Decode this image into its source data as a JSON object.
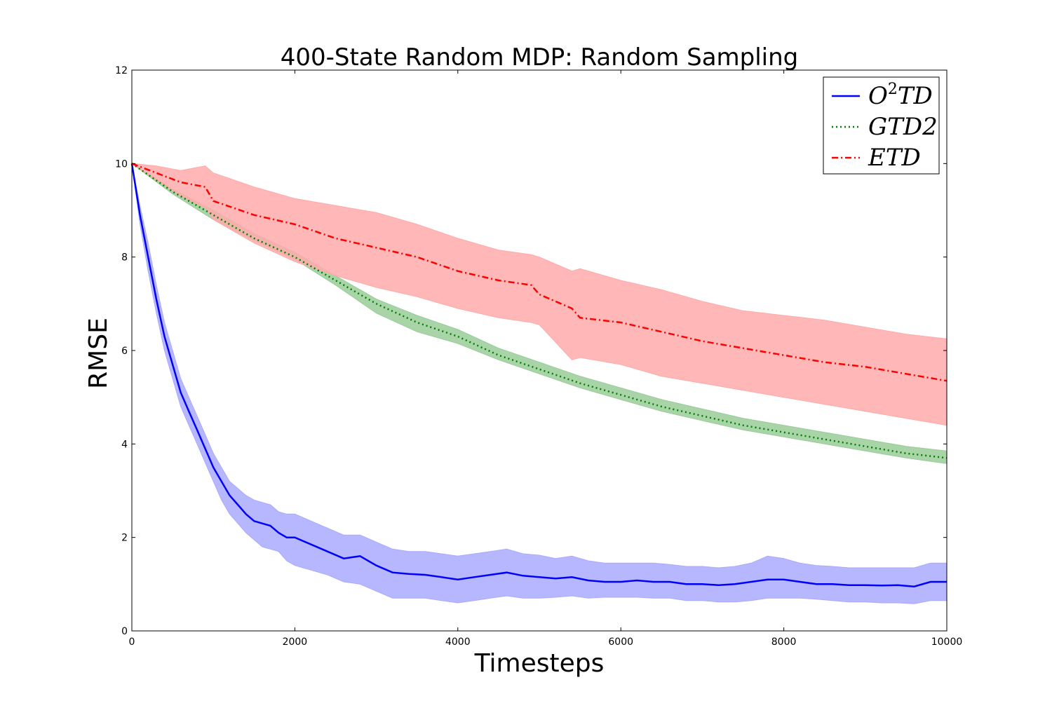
{
  "chart_data": {
    "type": "line",
    "title": "400-State Random MDP: Random Sampling",
    "xlabel": "Timesteps",
    "ylabel": "RMSE",
    "xlim": [
      0,
      10000
    ],
    "ylim": [
      0,
      12
    ],
    "xticks": [
      0,
      2000,
      4000,
      6000,
      8000,
      10000
    ],
    "yticks": [
      0,
      2,
      4,
      6,
      8,
      10,
      12
    ],
    "xtick_labels": [
      "0",
      "2000",
      "4000",
      "6000",
      "8000",
      "10000"
    ],
    "ytick_labels": [
      "0",
      "2",
      "4",
      "6",
      "8",
      "10",
      "12"
    ],
    "legend_position": "top-right",
    "series": [
      {
        "name": "O2TD",
        "legend_base": "O",
        "legend_sup": "2",
        "legend_rest": "TD",
        "color": "#0000ff",
        "band_color": "#aaaaff",
        "style": "solid",
        "x": [
          0,
          100,
          200,
          300,
          400,
          500,
          600,
          700,
          800,
          900,
          1000,
          1100,
          1200,
          1300,
          1400,
          1500,
          1600,
          1700,
          1800,
          1900,
          2000,
          2200,
          2400,
          2600,
          2800,
          3000,
          3200,
          3400,
          3600,
          3800,
          4000,
          4200,
          4400,
          4600,
          4800,
          5000,
          5200,
          5400,
          5600,
          5800,
          6000,
          6200,
          6400,
          6600,
          6800,
          7000,
          7200,
          7400,
          7600,
          7800,
          8000,
          8200,
          8400,
          8600,
          8800,
          9000,
          9200,
          9400,
          9600,
          9800,
          10000
        ],
        "y": [
          10.0,
          8.9,
          8.0,
          7.1,
          6.3,
          5.7,
          5.1,
          4.7,
          4.3,
          3.9,
          3.5,
          3.2,
          2.9,
          2.7,
          2.5,
          2.35,
          2.3,
          2.25,
          2.1,
          2.0,
          2.0,
          1.85,
          1.7,
          1.55,
          1.6,
          1.4,
          1.25,
          1.22,
          1.2,
          1.15,
          1.1,
          1.15,
          1.2,
          1.25,
          1.18,
          1.15,
          1.12,
          1.15,
          1.08,
          1.05,
          1.05,
          1.08,
          1.05,
          1.05,
          1.0,
          1.0,
          0.98,
          1.0,
          1.05,
          1.1,
          1.1,
          1.05,
          1.0,
          1.0,
          0.98,
          0.98,
          0.97,
          0.98,
          0.95,
          1.05,
          1.05
        ],
        "lower": [
          10.0,
          8.7,
          7.7,
          6.8,
          6.0,
          5.4,
          4.8,
          4.4,
          4.0,
          3.6,
          3.2,
          2.8,
          2.5,
          2.3,
          2.1,
          1.95,
          1.8,
          1.75,
          1.7,
          1.5,
          1.4,
          1.3,
          1.2,
          1.05,
          1.0,
          0.85,
          0.7,
          0.7,
          0.7,
          0.65,
          0.6,
          0.65,
          0.7,
          0.75,
          0.7,
          0.7,
          0.72,
          0.75,
          0.7,
          0.72,
          0.72,
          0.72,
          0.7,
          0.7,
          0.65,
          0.65,
          0.62,
          0.62,
          0.65,
          0.7,
          0.7,
          0.7,
          0.68,
          0.65,
          0.62,
          0.62,
          0.6,
          0.6,
          0.58,
          0.65,
          0.65
        ],
        "upper": [
          10.0,
          9.1,
          8.3,
          7.4,
          6.6,
          6.0,
          5.4,
          5.0,
          4.6,
          4.2,
          3.8,
          3.5,
          3.2,
          3.05,
          2.9,
          2.8,
          2.75,
          2.7,
          2.55,
          2.5,
          2.5,
          2.35,
          2.2,
          2.05,
          2.05,
          1.9,
          1.75,
          1.7,
          1.7,
          1.65,
          1.6,
          1.65,
          1.7,
          1.75,
          1.65,
          1.62,
          1.55,
          1.6,
          1.5,
          1.45,
          1.45,
          1.45,
          1.45,
          1.42,
          1.38,
          1.38,
          1.35,
          1.38,
          1.45,
          1.6,
          1.55,
          1.45,
          1.4,
          1.38,
          1.35,
          1.35,
          1.35,
          1.35,
          1.35,
          1.45,
          1.45
        ]
      },
      {
        "name": "GTD2",
        "legend_base": "GTD2",
        "legend_sup": "",
        "legend_rest": "",
        "color": "#008000",
        "band_color": "#99cc99",
        "style": "dotted",
        "x": [
          0,
          500,
          1000,
          1500,
          2000,
          2500,
          3000,
          3500,
          4000,
          4500,
          5000,
          5500,
          6000,
          6500,
          7000,
          7500,
          8000,
          8500,
          9000,
          9500,
          10000
        ],
        "y": [
          10.0,
          9.4,
          8.9,
          8.4,
          8.0,
          7.5,
          7.0,
          6.6,
          6.3,
          5.9,
          5.6,
          5.3,
          5.05,
          4.8,
          4.6,
          4.4,
          4.25,
          4.1,
          3.95,
          3.8,
          3.7
        ],
        "lower": [
          10.0,
          9.35,
          8.8,
          8.35,
          7.95,
          7.4,
          6.8,
          6.4,
          6.15,
          5.8,
          5.5,
          5.2,
          4.95,
          4.7,
          4.5,
          4.3,
          4.15,
          4.0,
          3.85,
          3.7,
          3.58
        ],
        "upper": [
          10.0,
          9.45,
          9.0,
          8.5,
          8.1,
          7.6,
          7.1,
          6.75,
          6.45,
          6.05,
          5.75,
          5.45,
          5.2,
          4.95,
          4.75,
          4.55,
          4.4,
          4.25,
          4.1,
          3.95,
          3.85
        ]
      },
      {
        "name": "ETD",
        "legend_base": "ETD",
        "legend_sup": "",
        "legend_rest": "",
        "color": "#ff0000",
        "band_color": "#ffaaaa",
        "style": "dashdot",
        "x": [
          0,
          300,
          600,
          900,
          1000,
          1500,
          2000,
          2500,
          3000,
          3500,
          4000,
          4500,
          4900,
          5000,
          5400,
          5500,
          6000,
          6500,
          7000,
          7500,
          8000,
          8500,
          9000,
          9500,
          10000
        ],
        "y": [
          10.0,
          9.8,
          9.6,
          9.5,
          9.2,
          8.9,
          8.7,
          8.4,
          8.2,
          8.0,
          7.7,
          7.5,
          7.4,
          7.2,
          6.9,
          6.7,
          6.6,
          6.4,
          6.2,
          6.05,
          5.9,
          5.75,
          5.65,
          5.5,
          5.35
        ],
        "lower": [
          10.0,
          9.65,
          9.3,
          9.05,
          8.8,
          8.3,
          7.9,
          7.6,
          7.35,
          7.15,
          6.9,
          6.7,
          6.6,
          6.55,
          5.8,
          5.85,
          5.7,
          5.45,
          5.3,
          5.15,
          5.0,
          4.85,
          4.7,
          4.55,
          4.4
        ],
        "upper": [
          10.0,
          9.95,
          9.85,
          9.95,
          9.8,
          9.5,
          9.25,
          9.1,
          8.95,
          8.7,
          8.4,
          8.15,
          8.05,
          8.0,
          7.7,
          7.75,
          7.5,
          7.3,
          7.05,
          6.85,
          6.75,
          6.65,
          6.5,
          6.35,
          6.25
        ]
      }
    ]
  }
}
